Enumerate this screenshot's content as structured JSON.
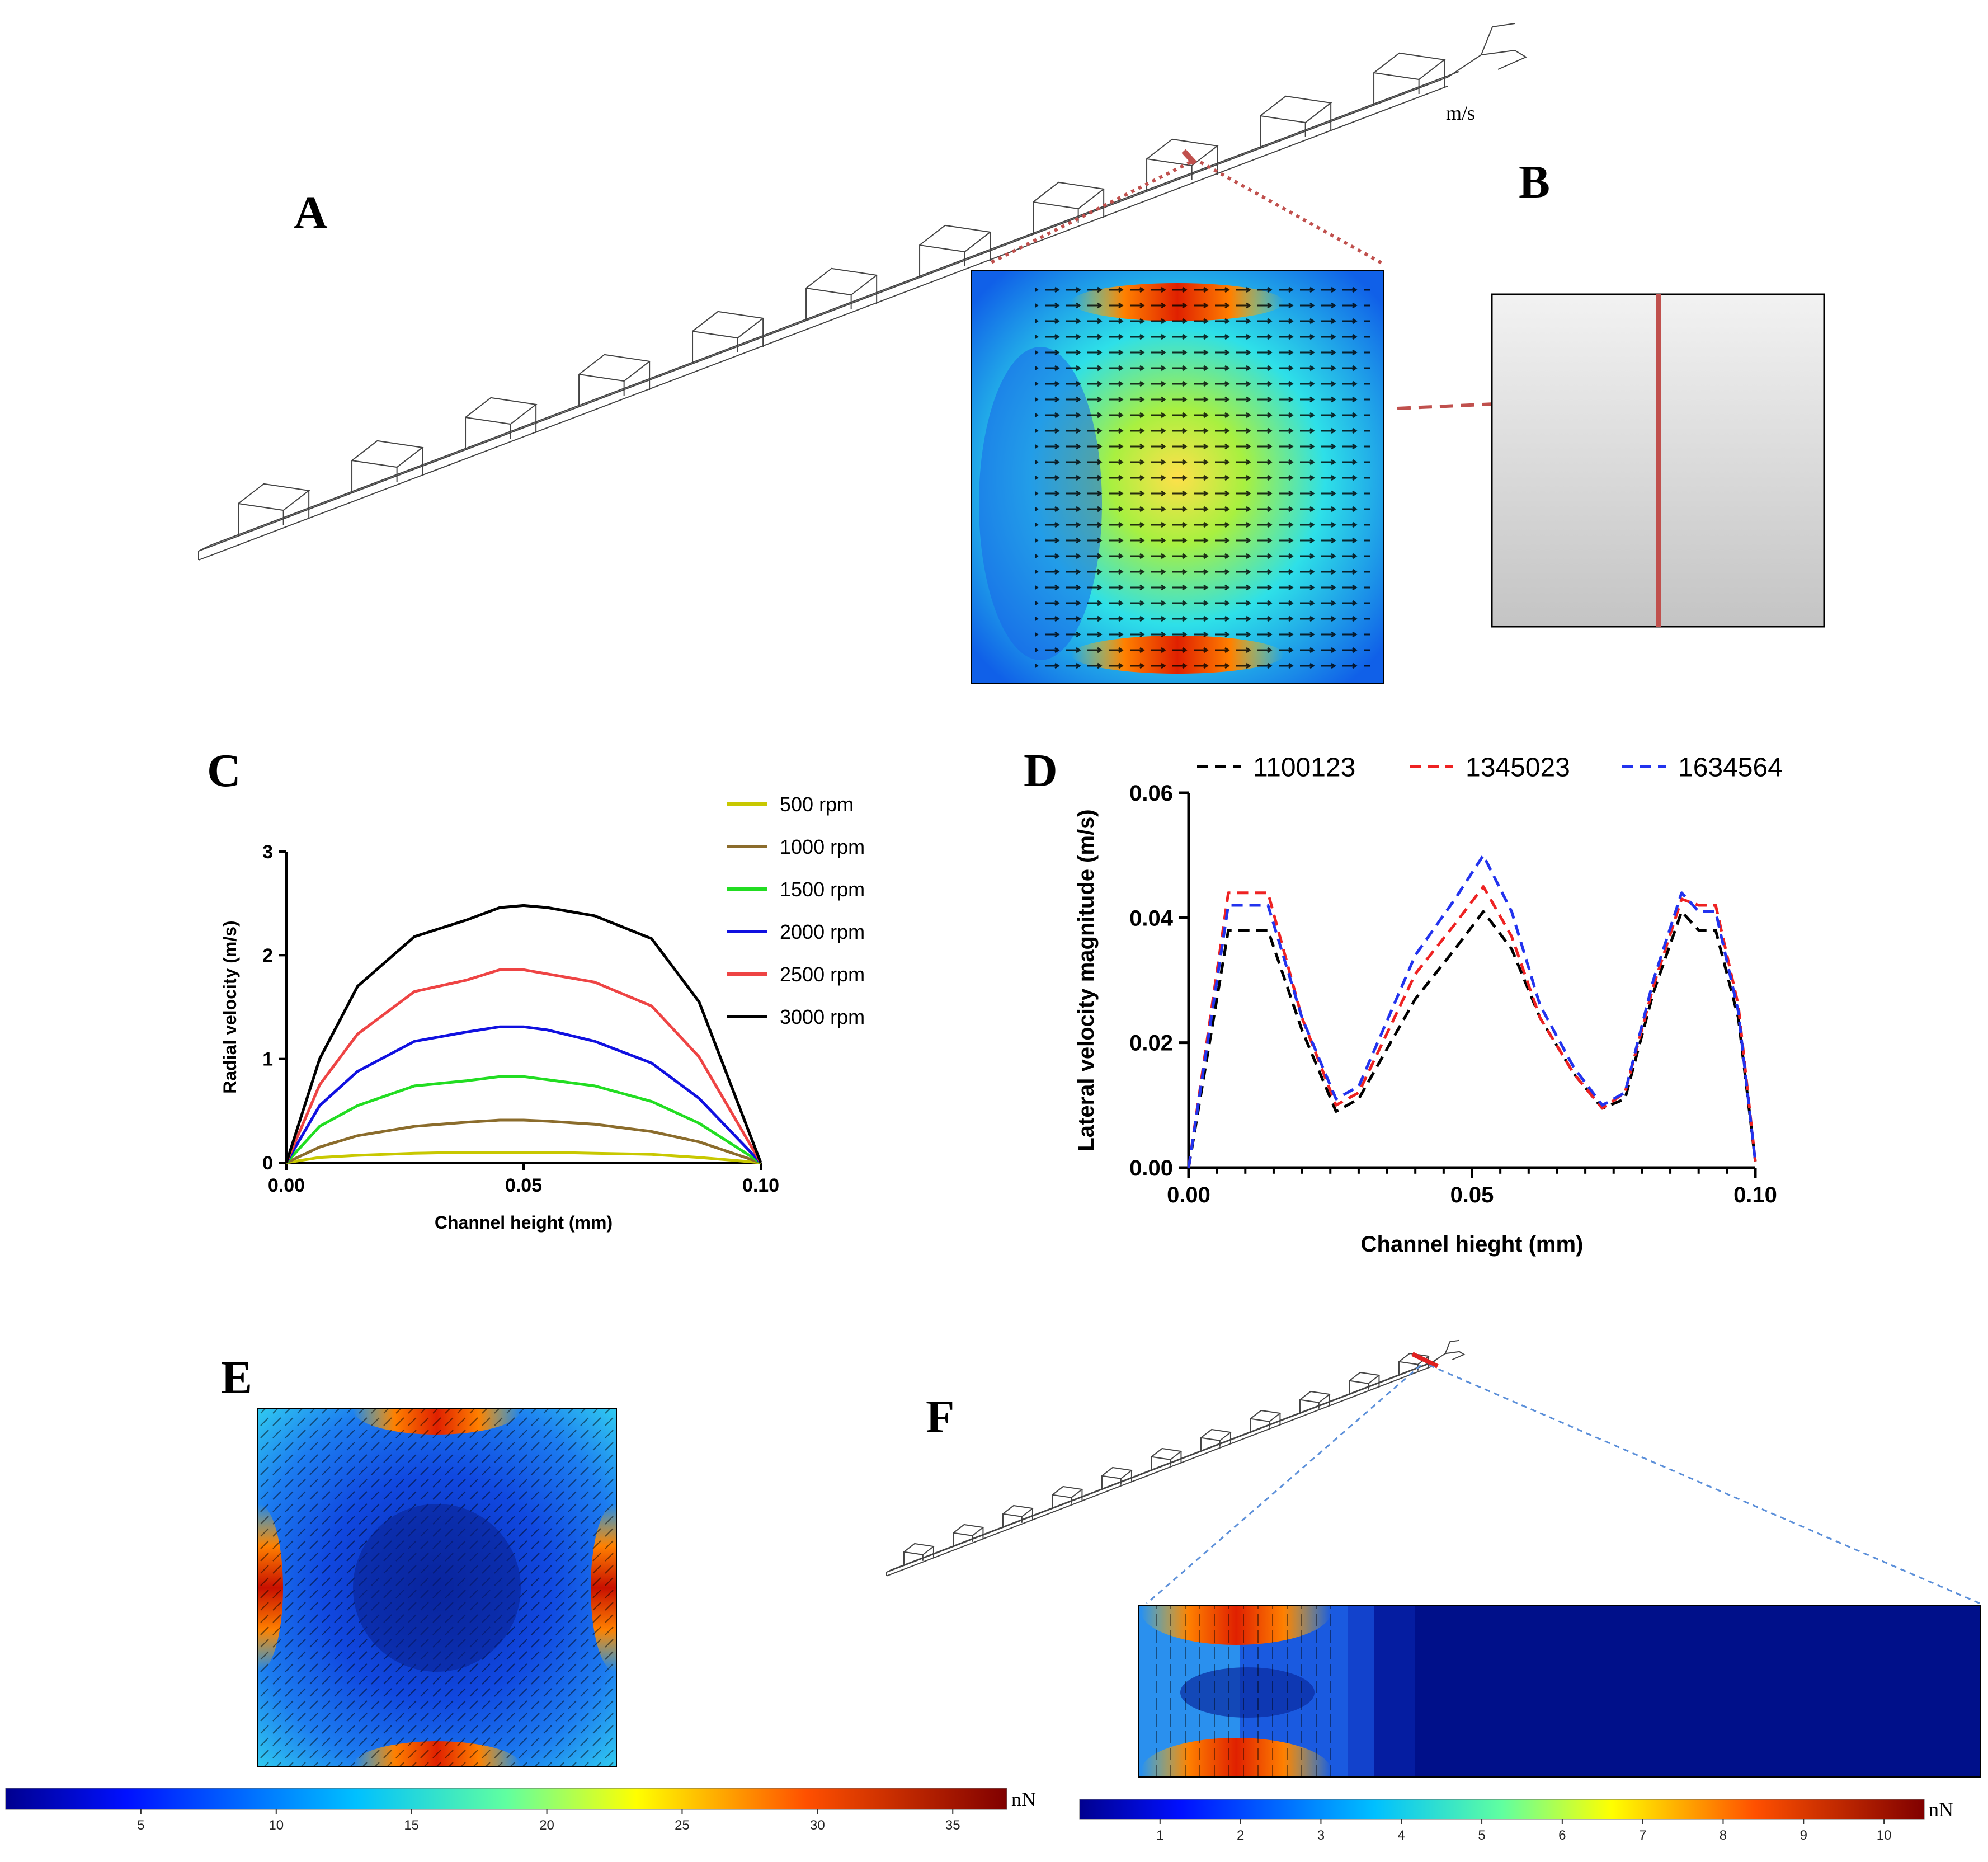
{
  "panels": {
    "A": {
      "label": "A",
      "unit": "m/s"
    },
    "B": {
      "label": "B"
    },
    "C": {
      "label": "C"
    },
    "D": {
      "label": "D"
    },
    "E": {
      "label": "E"
    },
    "F": {
      "label": "F"
    }
  },
  "colorbars": [
    {
      "unit": "nN",
      "ticks": [
        "5",
        "10",
        "15",
        "20",
        "25",
        "30",
        "35"
      ],
      "tick_values": [
        5,
        10,
        15,
        20,
        25,
        30,
        35
      ],
      "range": [
        0,
        37
      ]
    },
    {
      "unit": "nN",
      "ticks": [
        "1",
        "2",
        "3",
        "4",
        "5",
        "6",
        "7",
        "8",
        "9",
        "10"
      ],
      "tick_values": [
        1,
        2,
        3,
        4,
        5,
        6,
        7,
        8,
        9,
        10
      ],
      "range": [
        0,
        10.5
      ]
    }
  ],
  "colors": {
    "wireframe": "#444444",
    "highlight_red": "#c0504d",
    "dotted_red": "#c0504d",
    "dashed_blue": "#5b8fd9",
    "field_low": "#00108a",
    "field_high": "#8b0000"
  },
  "chart_data": [
    {
      "id": "C",
      "type": "line",
      "xlabel": "Channel height (mm)",
      "ylabel": "Radial velocity (m/s)",
      "xlim": [
        0,
        0.1
      ],
      "ylim": [
        0,
        3
      ],
      "xticks": [
        "0.00",
        "0.05",
        "0.10"
      ],
      "xtick_values": [
        0,
        0.05,
        0.1
      ],
      "yticks": [
        "0",
        "1",
        "2",
        "3"
      ],
      "ytick_values": [
        0,
        1,
        2,
        3
      ],
      "legend_position": "top-right",
      "x": [
        0,
        0.007,
        0.015,
        0.027,
        0.038,
        0.045,
        0.05,
        0.055,
        0.065,
        0.077,
        0.087,
        0.1
      ],
      "series": [
        {
          "name": "500 rpm",
          "color": "#c8c800",
          "values": [
            0,
            0.05,
            0.07,
            0.09,
            0.1,
            0.1,
            0.1,
            0.1,
            0.09,
            0.08,
            0.05,
            0
          ]
        },
        {
          "name": "1000 rpm",
          "color": "#8b6c2c",
          "values": [
            0,
            0.15,
            0.26,
            0.35,
            0.39,
            0.41,
            0.41,
            0.4,
            0.37,
            0.3,
            0.2,
            0
          ]
        },
        {
          "name": "1500 rpm",
          "color": "#22dd22",
          "values": [
            0,
            0.35,
            0.55,
            0.74,
            0.79,
            0.83,
            0.83,
            0.8,
            0.74,
            0.59,
            0.38,
            0
          ]
        },
        {
          "name": "2000 rpm",
          "color": "#1010e0",
          "values": [
            0,
            0.55,
            0.88,
            1.17,
            1.26,
            1.31,
            1.31,
            1.28,
            1.17,
            0.96,
            0.62,
            0
          ]
        },
        {
          "name": "2500 rpm",
          "color": "#ee4444",
          "values": [
            0,
            0.75,
            1.24,
            1.65,
            1.76,
            1.86,
            1.86,
            1.82,
            1.74,
            1.51,
            1.02,
            0
          ]
        },
        {
          "name": "3000 rpm",
          "color": "#000000",
          "values": [
            0,
            1.0,
            1.7,
            2.18,
            2.34,
            2.46,
            2.48,
            2.46,
            2.38,
            2.16,
            1.55,
            0
          ]
        }
      ]
    },
    {
      "id": "D",
      "type": "line",
      "xlabel": "Channel hieght (mm)",
      "ylabel": "Lateral velocity magnitude (m/s)",
      "xlim": [
        0,
        0.1
      ],
      "ylim": [
        0,
        0.06
      ],
      "xticks": [
        "0.00",
        "0.05",
        "0.10"
      ],
      "xtick_values": [
        0,
        0.05,
        0.1
      ],
      "yticks": [
        "0.00",
        "0.02",
        "0.04",
        "0.06"
      ],
      "ytick_values": [
        0,
        0.02,
        0.04,
        0.06
      ],
      "legend_position": "top",
      "series": [
        {
          "name": "1100123",
          "color": "#000000",
          "dashed": true,
          "x": [
            0,
            0.007,
            0.014,
            0.02,
            0.026,
            0.03,
            0.04,
            0.047,
            0.052,
            0.057,
            0.062,
            0.068,
            0.073,
            0.077,
            0.082,
            0.087,
            0.09,
            0.093,
            0.097,
            0.1
          ],
          "values": [
            0,
            0.038,
            0.038,
            0.022,
            0.009,
            0.011,
            0.027,
            0.035,
            0.041,
            0.035,
            0.024,
            0.015,
            0.0095,
            0.011,
            0.028,
            0.041,
            0.038,
            0.038,
            0.024,
            0.001
          ]
        },
        {
          "name": "1345023",
          "color": "#ee2222",
          "dashed": true,
          "x": [
            0,
            0.007,
            0.014,
            0.02,
            0.026,
            0.03,
            0.04,
            0.047,
            0.052,
            0.057,
            0.062,
            0.068,
            0.073,
            0.077,
            0.082,
            0.087,
            0.09,
            0.093,
            0.097,
            0.1
          ],
          "values": [
            0,
            0.044,
            0.044,
            0.024,
            0.01,
            0.012,
            0.031,
            0.039,
            0.045,
            0.037,
            0.024,
            0.015,
            0.0095,
            0.012,
            0.029,
            0.043,
            0.042,
            0.042,
            0.026,
            0.001
          ]
        },
        {
          "name": "1634564",
          "color": "#2233ee",
          "dashed": true,
          "x": [
            0,
            0.007,
            0.014,
            0.02,
            0.026,
            0.03,
            0.04,
            0.047,
            0.052,
            0.057,
            0.062,
            0.068,
            0.073,
            0.077,
            0.082,
            0.087,
            0.09,
            0.093,
            0.097,
            0.1
          ],
          "values": [
            0,
            0.042,
            0.042,
            0.024,
            0.011,
            0.013,
            0.034,
            0.043,
            0.05,
            0.041,
            0.026,
            0.016,
            0.01,
            0.012,
            0.03,
            0.044,
            0.041,
            0.041,
            0.025,
            0.001
          ]
        }
      ]
    }
  ]
}
